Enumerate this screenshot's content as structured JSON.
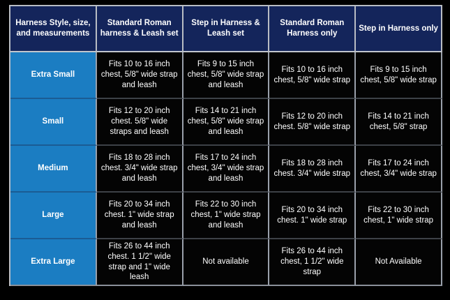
{
  "chart_data": {
    "type": "table",
    "columns": [
      "Harness Style, size, and measurements",
      "Standard Roman harness & Leash set",
      "Step in Harness & Leash set",
      "Standard Roman Harness only",
      "Step in Harness only"
    ],
    "rows": [
      {
        "label": "Extra Small",
        "cells": [
          "Fits 10 to 16 inch chest, 5/8\" wide strap and leash",
          "Fits 9 to 15 inch chest, 5/8\" wide strap and leash",
          "Fits 10 to 16 inch chest, 5/8\" wide strap",
          "Fits 9 to 15 inch chest, 5/8\" wide strap"
        ]
      },
      {
        "label": "Small",
        "cells": [
          "Fits 12 to 20 inch chest. 5/8\" wide straps and leash",
          "Fits 14 to 21 inch chest, 5/8\" wide strap and leash",
          "Fits 12 to 20 inch chest. 5/8\" wide strap",
          "Fits 14 to 21 inch chest, 5/8\" strap"
        ]
      },
      {
        "label": "Medium",
        "cells": [
          "Fits 18 to 28 inch chest. 3/4\" wide strap and leash",
          "Fits 17 to 24 inch chest, 3/4\" wide strap and leash",
          "Fits 18 to 28 inch chest. 3/4\" wide strap",
          "Fits 17 to 24 inch chest, 3/4\" wide strap"
        ]
      },
      {
        "label": "Large",
        "cells": [
          "Fits 20 to 34 inch chest. 1\" wide strap and leash",
          "Fits 22 to 30 inch chest, 1\" wide strap and leash",
          "Fits 20 to 34 inch chest. 1\" wide strap",
          "Fits 22 to 30 inch chest, 1\" wide strap"
        ]
      },
      {
        "label": "Extra Large",
        "cells": [
          "Fits 26 to 44 inch chest. 1 1/2\" wide strap and 1\" wide leash",
          "Not available",
          "Fits 26 to 44 inch chest, 1 1/2\" wide strap",
          "Not Available"
        ]
      }
    ],
    "layout": {
      "legend": "none",
      "grid": "on"
    },
    "colors": {
      "page_bg": "#000000",
      "header_bg": "#14255b",
      "size_column_bg": "#1b7dc2",
      "data_cell_bg": "#040404",
      "text": "#ffffff",
      "border_light": "#b9bdc4",
      "border_dark": "#3d4147"
    }
  }
}
